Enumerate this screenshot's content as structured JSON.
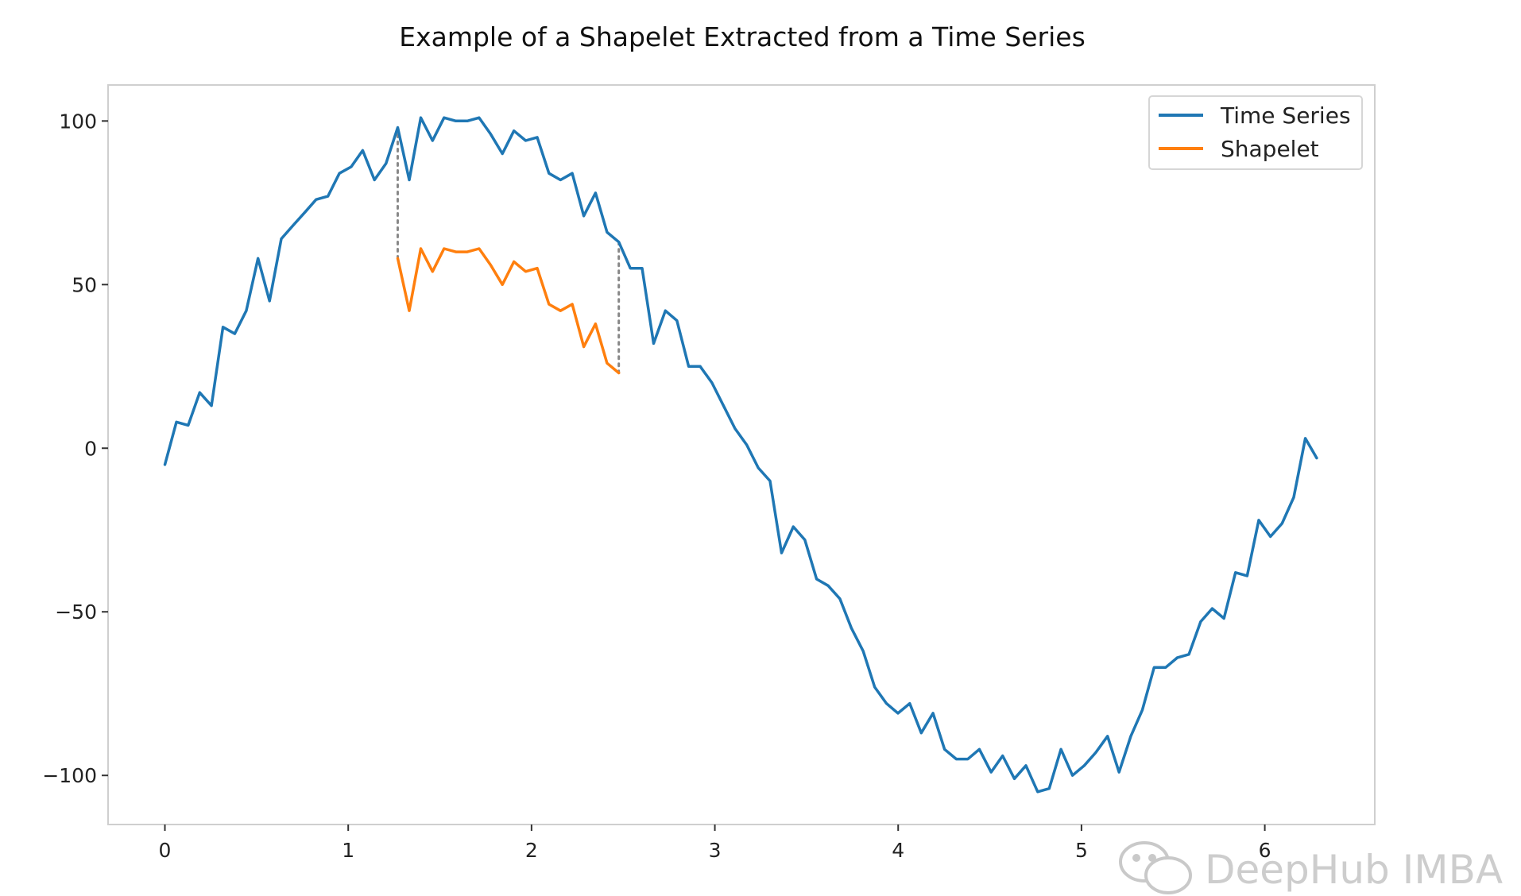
{
  "chart_data": {
    "type": "line",
    "title": "Example of a Shapelet Extracted from a Time Series",
    "xlabel": "",
    "ylabel": "",
    "xlim": [
      -0.31,
      6.6
    ],
    "ylim": [
      -115,
      111
    ],
    "x_ticks": [
      0,
      1,
      2,
      3,
      4,
      5,
      6
    ],
    "y_ticks": [
      100,
      50,
      0,
      -50,
      -100
    ],
    "y_tick_labels": [
      "100",
      "50",
      "0",
      "−50",
      "−100"
    ],
    "grid": false,
    "legend": {
      "placement": "top-right"
    },
    "series": [
      {
        "name": "Time Series",
        "color": "#1f77b4",
        "x": [
          0.0,
          0.063,
          0.127,
          0.19,
          0.254,
          0.317,
          0.381,
          0.444,
          0.508,
          0.571,
          0.635,
          0.698,
          0.762,
          0.825,
          0.889,
          0.952,
          1.016,
          1.079,
          1.143,
          1.206,
          1.27,
          1.333,
          1.396,
          1.46,
          1.523,
          1.587,
          1.65,
          1.714,
          1.777,
          1.841,
          1.904,
          1.968,
          2.031,
          2.095,
          2.158,
          2.222,
          2.285,
          2.349,
          2.412,
          2.476,
          2.539,
          2.603,
          2.666,
          2.73,
          2.793,
          2.857,
          2.92,
          2.984,
          3.047,
          3.11,
          3.174,
          3.237,
          3.301,
          3.364,
          3.428,
          3.491,
          3.555,
          3.618,
          3.682,
          3.745,
          3.809,
          3.872,
          3.936,
          3.999,
          4.063,
          4.126,
          4.19,
          4.253,
          4.317,
          4.38,
          4.443,
          4.507,
          4.57,
          4.634,
          4.697,
          4.761,
          4.824,
          4.888,
          4.951,
          5.015,
          5.078,
          5.142,
          5.205,
          5.269,
          5.332,
          5.396,
          5.459,
          5.523,
          5.586,
          5.65,
          5.713,
          5.777,
          5.84,
          5.904,
          5.967,
          6.031,
          6.094,
          6.158,
          6.221,
          6.283
        ],
        "values": [
          -5,
          8,
          7,
          17,
          13,
          37,
          35,
          42,
          58,
          45,
          64,
          68,
          72,
          76,
          77,
          84,
          86,
          91,
          82,
          87,
          98,
          82,
          101,
          94,
          101,
          100,
          100,
          101,
          96,
          90,
          97,
          94,
          95,
          84,
          82,
          84,
          71,
          78,
          66,
          63,
          55,
          55,
          32,
          42,
          39,
          25,
          25,
          20,
          13,
          6,
          1,
          -6,
          -10,
          -32,
          -24,
          -28,
          -40,
          -42,
          -46,
          -55,
          -62,
          -73,
          -78,
          -81,
          -78,
          -87,
          -81,
          -92,
          -95,
          -95,
          -92,
          -99,
          -94,
          -101,
          -97,
          -105,
          -104,
          -92,
          -100,
          -97,
          -93,
          -88,
          -99,
          -88,
          -80,
          -67,
          -67,
          -64,
          -63,
          -53,
          -49,
          -52,
          -38,
          -39,
          -22,
          -27,
          -23,
          -15,
          3,
          -3
        ]
      },
      {
        "name": "Shapelet",
        "color": "#ff7f0e",
        "x": [
          1.27,
          1.333,
          1.396,
          1.46,
          1.523,
          1.587,
          1.65,
          1.714,
          1.777,
          1.841,
          1.904,
          1.968,
          2.031,
          2.095,
          2.158,
          2.222,
          2.285,
          2.349,
          2.412,
          2.476
        ],
        "values": [
          58,
          42,
          61,
          54,
          61,
          60,
          60,
          61,
          56,
          50,
          57,
          54,
          55,
          44,
          42,
          44,
          31,
          38,
          26,
          23
        ]
      }
    ],
    "annotations": [
      {
        "type": "dotted-vertical",
        "x": 1.27,
        "y_from": 98,
        "y_to": 58
      },
      {
        "type": "dotted-vertical",
        "x": 2.476,
        "y_from": 63,
        "y_to": 23
      }
    ]
  },
  "watermark": {
    "text": "DeepHub IMBA",
    "icon": "wechat-icon"
  }
}
